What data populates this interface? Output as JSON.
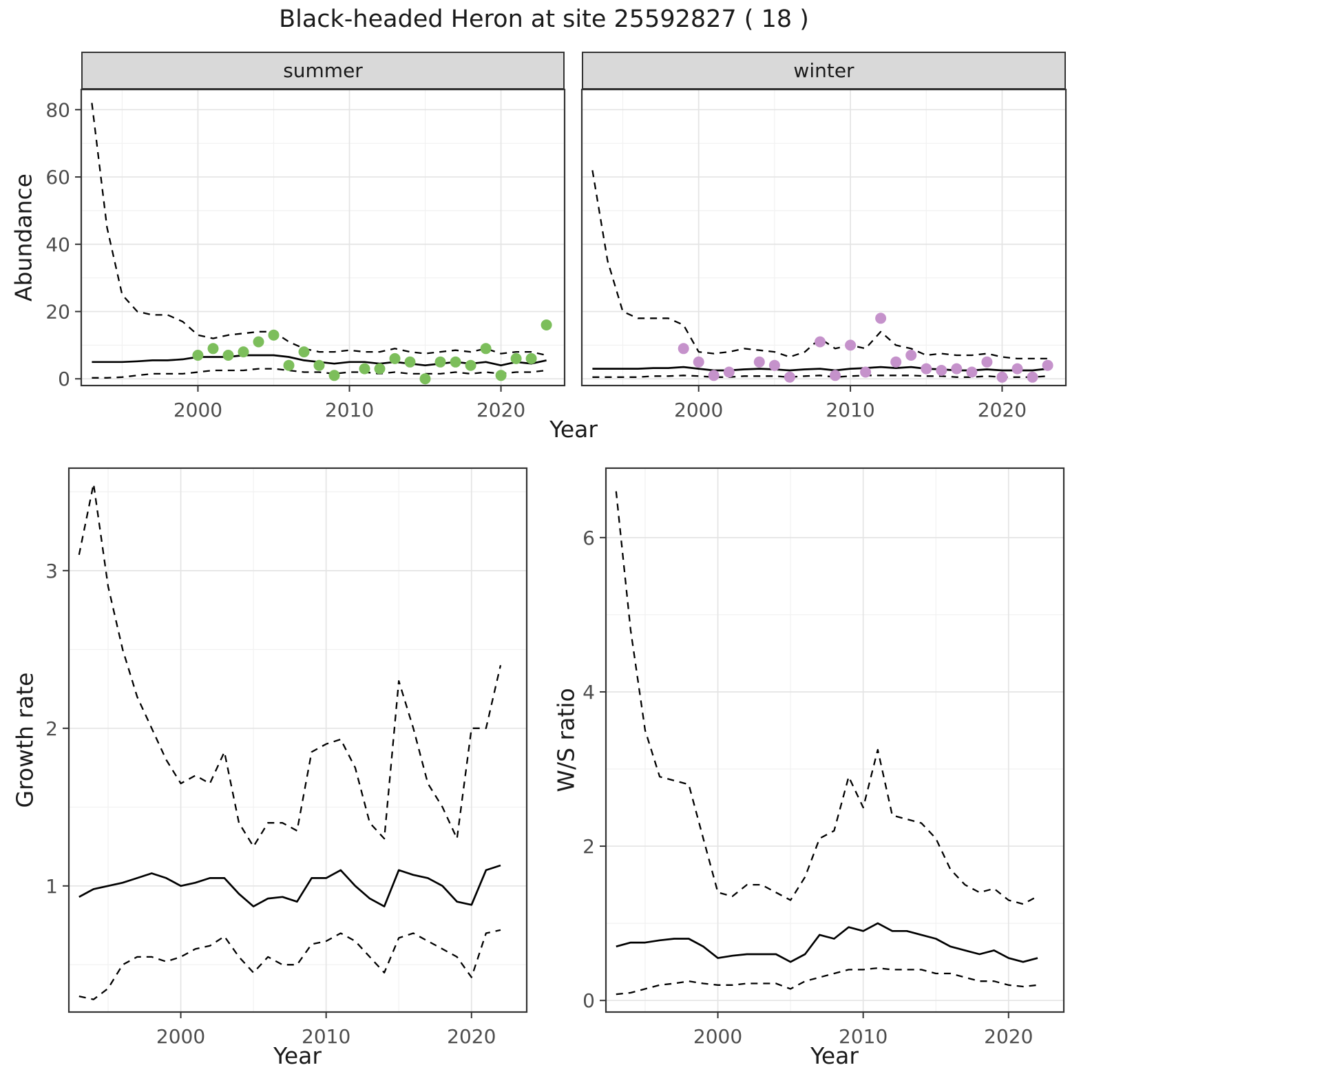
{
  "title": "Black-headed Heron at site 25592827 ( 18 )",
  "axes": {
    "abundance": {
      "x": "Year",
      "y": "Abundance"
    },
    "growth": {
      "x": "Year",
      "y": "Growth rate"
    },
    "ws": {
      "x": "Year",
      "y": "W/S ratio"
    }
  },
  "colors": {
    "summer_points": "#7CBE5B",
    "winter_points": "#C592CB",
    "line": "#000000",
    "strip_bg": "#D9D9D9",
    "grid_major": "#E4E4E4",
    "grid_minor": "#F1F1F1",
    "panel_border": "#333333",
    "tick_text": "#4D4D4D",
    "text": "#1A1A1A"
  },
  "chart_data": [
    {
      "type": "line",
      "panel": "abundance-summer",
      "facet_label": "summer",
      "xlabel": "Year",
      "ylabel": "Abundance",
      "xlim": [
        1992.3,
        2024.2
      ],
      "ylim": [
        -2,
        86
      ],
      "xticks": [
        2000,
        2010,
        2020
      ],
      "yticks": [
        0,
        20,
        40,
        60,
        80
      ],
      "x_minor": [
        1995,
        2005,
        2015
      ],
      "y_minor": [
        10,
        30,
        50,
        70
      ],
      "grid": true,
      "legend": "none",
      "years": [
        1993,
        1994,
        1995,
        1996,
        1997,
        1998,
        1999,
        2000,
        2001,
        2002,
        2003,
        2004,
        2005,
        2006,
        2007,
        2008,
        2009,
        2010,
        2011,
        2012,
        2013,
        2014,
        2015,
        2016,
        2017,
        2018,
        2019,
        2020,
        2021,
        2022,
        2023
      ],
      "series": [
        {
          "name": "upper-ci",
          "style": "dashed",
          "values": [
            82,
            45,
            25,
            20,
            19,
            19,
            17,
            13,
            12,
            13,
            13.5,
            14,
            14,
            11,
            9,
            8,
            8,
            8.5,
            8,
            8,
            9,
            8,
            7.5,
            8,
            8.5,
            8,
            9,
            7.5,
            8,
            8,
            7
          ]
        },
        {
          "name": "mean",
          "style": "solid",
          "values": [
            5,
            5,
            5,
            5.2,
            5.5,
            5.5,
            5.8,
            6.5,
            6.5,
            6.5,
            7,
            7,
            7,
            6.5,
            5.5,
            5,
            4.5,
            5,
            5,
            4.5,
            5,
            4.5,
            4,
            4.5,
            5,
            4.5,
            5,
            4,
            5,
            4.5,
            5.5
          ]
        },
        {
          "name": "lower-ci",
          "style": "dashed",
          "values": [
            0.3,
            0.3,
            0.5,
            1,
            1.5,
            1.5,
            1.5,
            2,
            2.5,
            2.5,
            2.5,
            3,
            3,
            2.5,
            2,
            2,
            1.5,
            2,
            2,
            1.5,
            2,
            1.5,
            1.5,
            1.5,
            2,
            1.5,
            2,
            1.5,
            2,
            2,
            2.5
          ]
        }
      ],
      "points": {
        "name": "observed-counts-summer",
        "color": "#7CBE5B",
        "x": [
          2000,
          2001,
          2002,
          2003,
          2004,
          2005,
          2006,
          2007,
          2008,
          2009,
          2011,
          2012,
          2013,
          2014,
          2015,
          2016,
          2017,
          2018,
          2019,
          2020,
          2021,
          2022,
          2023
        ],
        "y": [
          7,
          9,
          7,
          8,
          11,
          13,
          4,
          8,
          4,
          1,
          3,
          3,
          6,
          5,
          0,
          5,
          5,
          4,
          9,
          1,
          6,
          6,
          16
        ]
      }
    },
    {
      "type": "line",
      "panel": "abundance-winter",
      "facet_label": "winter",
      "xlabel": "Year",
      "ylabel": "Abundance",
      "xlim": [
        1992.3,
        2024.2
      ],
      "ylim": [
        -2,
        86
      ],
      "xticks": [
        2000,
        2010,
        2020
      ],
      "yticks": [
        0,
        20,
        40,
        60,
        80
      ],
      "x_minor": [
        1995,
        2005,
        2015
      ],
      "y_minor": [
        10,
        30,
        50,
        70
      ],
      "grid": true,
      "legend": "none",
      "years": [
        1993,
        1994,
        1995,
        1996,
        1997,
        1998,
        1999,
        2000,
        2001,
        2002,
        2003,
        2004,
        2005,
        2006,
        2007,
        2008,
        2009,
        2010,
        2011,
        2012,
        2013,
        2014,
        2015,
        2016,
        2017,
        2018,
        2019,
        2020,
        2021,
        2022,
        2023
      ],
      "series": [
        {
          "name": "upper-ci",
          "style": "dashed",
          "values": [
            62,
            35,
            20,
            18,
            18,
            18,
            16,
            8,
            7.5,
            8,
            9,
            8.5,
            8,
            6.5,
            8,
            12,
            9,
            10,
            9,
            14,
            10,
            9,
            7,
            7.5,
            7,
            7,
            7.5,
            6.5,
            6,
            6,
            6
          ]
        },
        {
          "name": "mean",
          "style": "solid",
          "values": [
            3,
            3,
            3,
            3,
            3.2,
            3.2,
            3.5,
            3,
            2.5,
            2.5,
            2.8,
            3,
            2.8,
            2.5,
            2.8,
            3,
            2.5,
            3,
            3.2,
            3.5,
            3.2,
            3.5,
            3,
            2.8,
            2.5,
            2.5,
            2.8,
            2.5,
            2.5,
            2.5,
            3
          ]
        },
        {
          "name": "lower-ci",
          "style": "dashed",
          "values": [
            0.5,
            0.5,
            0.5,
            0.5,
            0.8,
            0.8,
            1,
            0.8,
            0.5,
            0.5,
            0.8,
            0.8,
            0.8,
            0.5,
            0.8,
            1,
            0.5,
            0.8,
            1,
            1,
            1,
            1,
            0.8,
            0.8,
            0.5,
            0.5,
            0.8,
            0.5,
            0.5,
            0.5,
            0.8
          ]
        }
      ],
      "points": {
        "name": "observed-counts-winter",
        "color": "#C592CB",
        "x": [
          1999,
          2000,
          2001,
          2002,
          2004,
          2005,
          2006,
          2008,
          2009,
          2010,
          2011,
          2012,
          2013,
          2014,
          2015,
          2016,
          2017,
          2018,
          2019,
          2020,
          2021,
          2022,
          2023
        ],
        "y": [
          9,
          5,
          1,
          2,
          5,
          4,
          0.5,
          11,
          1,
          10,
          2,
          18,
          5,
          7,
          3,
          2.5,
          3,
          2,
          5,
          0.5,
          3,
          0.5,
          4
        ]
      }
    },
    {
      "type": "line",
      "panel": "growth-rate",
      "facet_label": "",
      "xlabel": "Year",
      "ylabel": "Growth rate",
      "xlim": [
        1992.3,
        2023.8
      ],
      "ylim": [
        0.2,
        3.65
      ],
      "xticks": [
        2000,
        2010,
        2020
      ],
      "yticks": [
        1,
        2,
        3
      ],
      "x_minor": [
        1995,
        2005,
        2015
      ],
      "y_minor": [
        0.5,
        1.5,
        2.5,
        3.5
      ],
      "grid": true,
      "legend": "none",
      "years": [
        1993,
        1994,
        1995,
        1996,
        1997,
        1998,
        1999,
        2000,
        2001,
        2002,
        2003,
        2004,
        2005,
        2006,
        2007,
        2008,
        2009,
        2010,
        2011,
        2012,
        2013,
        2014,
        2015,
        2016,
        2017,
        2018,
        2019,
        2020,
        2021,
        2022
      ],
      "series": [
        {
          "name": "upper-ci",
          "style": "dashed",
          "values": [
            3.1,
            3.55,
            2.9,
            2.5,
            2.2,
            2.0,
            1.8,
            1.65,
            1.7,
            1.65,
            1.85,
            1.4,
            1.25,
            1.4,
            1.4,
            1.35,
            1.85,
            1.9,
            1.93,
            1.75,
            1.4,
            1.3,
            2.3,
            2.0,
            1.65,
            1.5,
            1.3,
            2.0,
            2.0,
            2.4
          ]
        },
        {
          "name": "mean",
          "style": "solid",
          "values": [
            0.93,
            0.98,
            1.0,
            1.02,
            1.05,
            1.08,
            1.05,
            1.0,
            1.02,
            1.05,
            1.05,
            0.95,
            0.87,
            0.92,
            0.93,
            0.9,
            1.05,
            1.05,
            1.1,
            1.0,
            0.92,
            0.87,
            1.1,
            1.07,
            1.05,
            1.0,
            0.9,
            0.88,
            1.1,
            1.13
          ]
        },
        {
          "name": "lower-ci",
          "style": "dashed",
          "values": [
            0.3,
            0.28,
            0.35,
            0.5,
            0.55,
            0.55,
            0.52,
            0.55,
            0.6,
            0.62,
            0.68,
            0.55,
            0.45,
            0.55,
            0.5,
            0.5,
            0.63,
            0.65,
            0.7,
            0.65,
            0.55,
            0.45,
            0.67,
            0.7,
            0.65,
            0.6,
            0.55,
            0.42,
            0.7,
            0.72
          ]
        }
      ],
      "points": null
    },
    {
      "type": "line",
      "panel": "ws-ratio",
      "facet_label": "",
      "xlabel": "Year",
      "ylabel": "W/S ratio",
      "xlim": [
        1992.3,
        2023.8
      ],
      "ylim": [
        -0.15,
        6.9
      ],
      "xticks": [
        2000,
        2010,
        2020
      ],
      "yticks": [
        0,
        2,
        4,
        6
      ],
      "x_minor": [
        1995,
        2005,
        2015
      ],
      "y_minor": [
        1,
        3,
        5
      ],
      "grid": true,
      "legend": "none",
      "years": [
        1993,
        1994,
        1995,
        1996,
        1997,
        1998,
        1999,
        2000,
        2001,
        2002,
        2003,
        2004,
        2005,
        2006,
        2007,
        2008,
        2009,
        2010,
        2011,
        2012,
        2013,
        2014,
        2015,
        2016,
        2017,
        2018,
        2019,
        2020,
        2021,
        2022
      ],
      "series": [
        {
          "name": "upper-ci",
          "style": "dashed",
          "values": [
            6.6,
            4.8,
            3.5,
            2.9,
            2.85,
            2.8,
            2.1,
            1.4,
            1.35,
            1.5,
            1.5,
            1.4,
            1.3,
            1.6,
            2.1,
            2.2,
            2.9,
            2.5,
            3.25,
            2.4,
            2.35,
            2.3,
            2.1,
            1.7,
            1.5,
            1.4,
            1.45,
            1.3,
            1.25,
            1.35
          ]
        },
        {
          "name": "mean",
          "style": "solid",
          "values": [
            0.7,
            0.75,
            0.75,
            0.78,
            0.8,
            0.8,
            0.7,
            0.55,
            0.58,
            0.6,
            0.6,
            0.6,
            0.5,
            0.6,
            0.85,
            0.8,
            0.95,
            0.9,
            1.0,
            0.9,
            0.9,
            0.85,
            0.8,
            0.7,
            0.65,
            0.6,
            0.65,
            0.55,
            0.5,
            0.55
          ]
        },
        {
          "name": "lower-ci",
          "style": "dashed",
          "values": [
            0.08,
            0.1,
            0.15,
            0.2,
            0.22,
            0.25,
            0.22,
            0.2,
            0.2,
            0.22,
            0.22,
            0.22,
            0.15,
            0.25,
            0.3,
            0.35,
            0.4,
            0.4,
            0.42,
            0.4,
            0.4,
            0.4,
            0.35,
            0.35,
            0.3,
            0.25,
            0.25,
            0.2,
            0.18,
            0.2
          ]
        }
      ],
      "points": null
    }
  ]
}
